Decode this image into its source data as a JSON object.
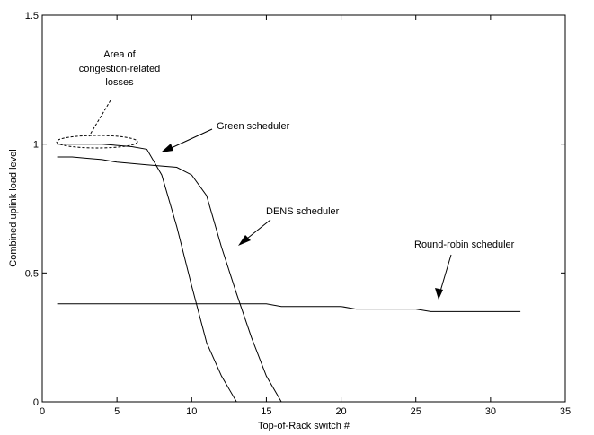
{
  "chart_data": {
    "type": "line",
    "title": "",
    "xlabel": "Top-of-Rack switch #",
    "ylabel": "Combined uplink load level",
    "xlim": [
      0,
      35
    ],
    "ylim": [
      0,
      1.5
    ],
    "xticks": [
      0,
      5,
      10,
      15,
      20,
      25,
      30,
      35
    ],
    "yticks": [
      0,
      0.5,
      1,
      1.5
    ],
    "ytick_labels": [
      "0",
      "0.5",
      "1",
      "1.5"
    ],
    "grid": false,
    "legend": false,
    "line_color": "#000000",
    "series": [
      {
        "id": "green",
        "x": [
          1,
          2,
          3,
          4,
          5,
          6,
          7,
          8,
          9,
          10,
          11,
          12,
          13
        ],
        "y": [
          1.0,
          1.0,
          1.0,
          1.0,
          0.995,
          0.99,
          0.98,
          0.88,
          0.68,
          0.45,
          0.23,
          0.1,
          0.0
        ]
      },
      {
        "id": "dens",
        "x": [
          1,
          2,
          3,
          4,
          5,
          6,
          7,
          8,
          9,
          10,
          11,
          12,
          13,
          14,
          15,
          16
        ],
        "y": [
          0.95,
          0.95,
          0.945,
          0.94,
          0.93,
          0.925,
          0.92,
          0.915,
          0.91,
          0.88,
          0.8,
          0.6,
          0.42,
          0.25,
          0.1,
          0.0
        ]
      },
      {
        "id": "round-robin",
        "x": [
          1,
          5,
          10,
          15,
          16,
          20,
          21,
          25,
          26,
          32
        ],
        "y": [
          0.38,
          0.38,
          0.38,
          0.38,
          0.37,
          0.37,
          0.36,
          0.36,
          0.35,
          0.35
        ]
      }
    ],
    "annotations": {
      "green_label": "Green scheduler",
      "dens_label": "DENS scheduler",
      "rr_label": "Round-robin scheduler",
      "congestion_label": [
        "Area of",
        "congestion-related",
        "losses"
      ]
    }
  }
}
